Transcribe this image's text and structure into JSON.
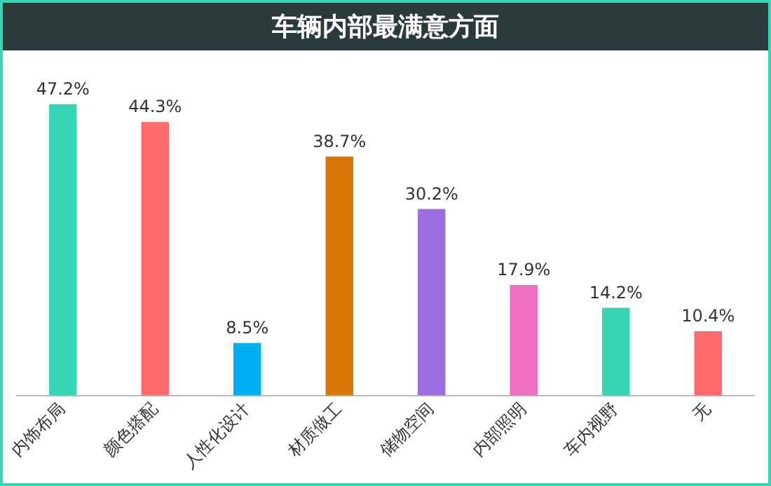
{
  "chart_data": {
    "type": "bar",
    "title": "车辆内部最满意方面",
    "categories": [
      "内饰布局",
      "颜色搭配",
      "人性化设计",
      "材质做工",
      "储物空间",
      "内部照明",
      "车内视野",
      "无"
    ],
    "values": [
      47.2,
      44.3,
      8.5,
      38.7,
      30.2,
      17.9,
      14.2,
      10.4
    ],
    "colors": [
      "#36d6b4",
      "#ff6b6b",
      "#00b0f0",
      "#d97706",
      "#9b6fe0",
      "#f06fc0",
      "#36d6b4",
      "#ff6b6b"
    ],
    "value_labels": [
      "47.2%",
      "44.3%",
      "8.5%",
      "38.7%",
      "30.2%",
      "17.9%",
      "14.2%",
      "10.4%"
    ],
    "grid": false,
    "legend": false
  }
}
